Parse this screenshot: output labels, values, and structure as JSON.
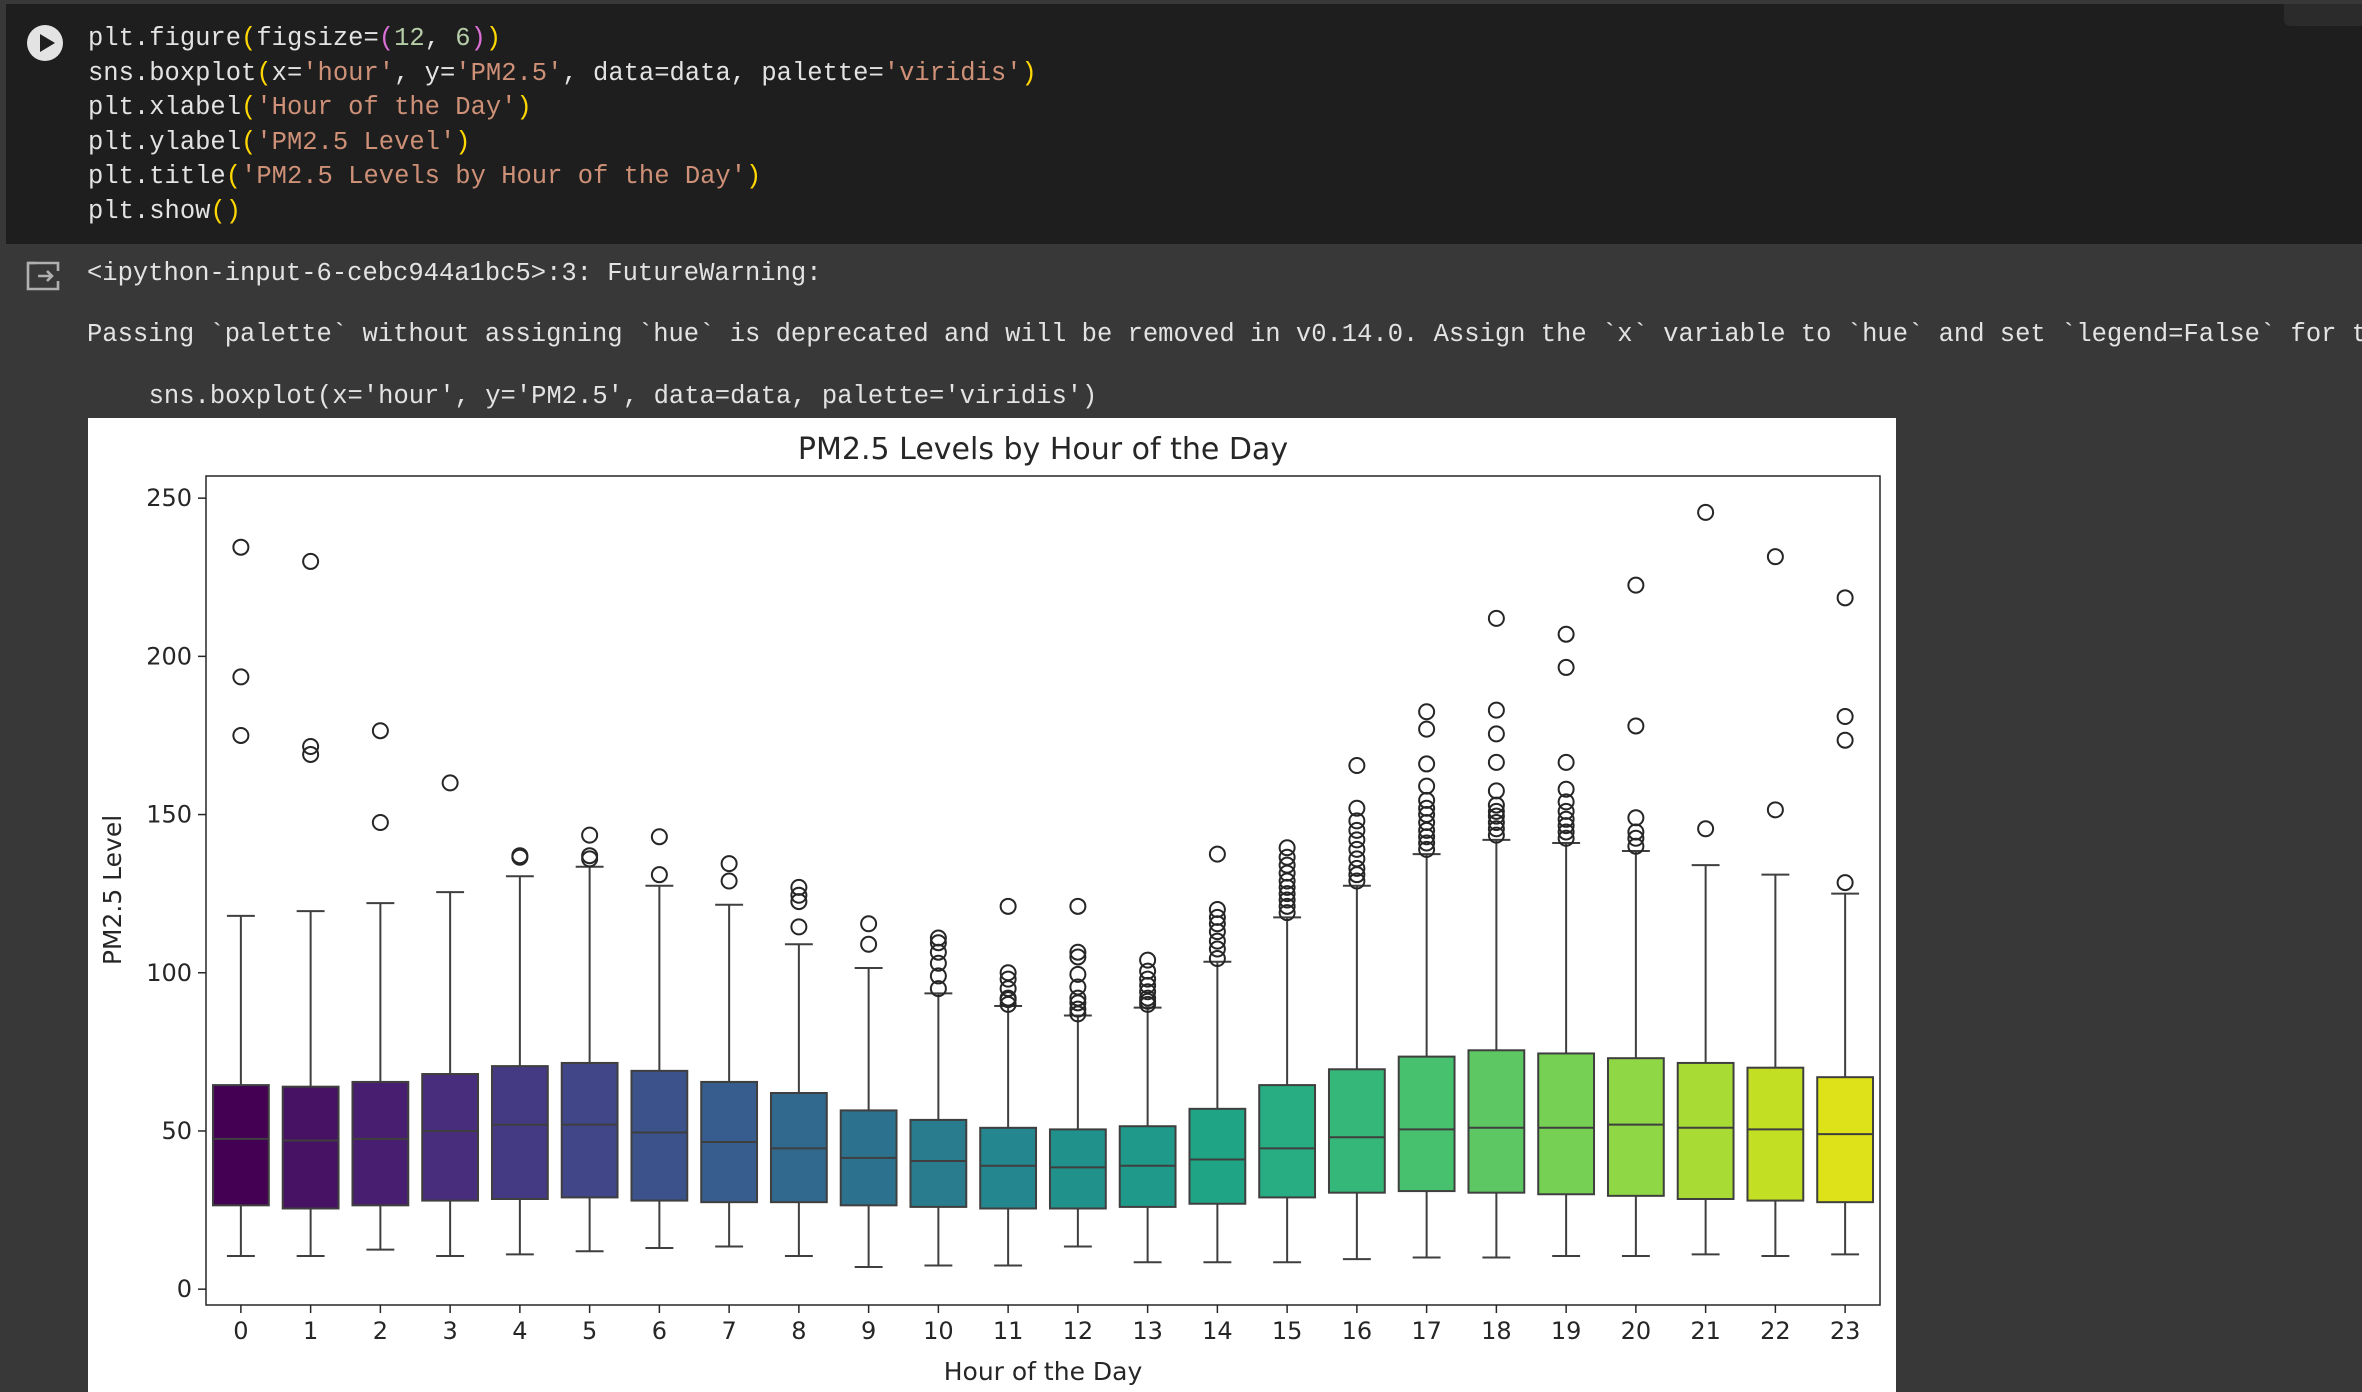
{
  "code_cell": {
    "lines": [
      [
        [
          "plt.figure",
          "t"
        ],
        [
          "(",
          "p1"
        ],
        [
          "figsize=",
          "t"
        ],
        [
          "(",
          "p2"
        ],
        [
          "12",
          "n"
        ],
        [
          ", ",
          "t"
        ],
        [
          "6",
          "n"
        ],
        [
          ")",
          "p2"
        ],
        [
          ")",
          "p1"
        ]
      ],
      [
        [
          "sns.boxplot",
          "t"
        ],
        [
          "(",
          "p1"
        ],
        [
          "x=",
          "t"
        ],
        [
          "'hour'",
          "s"
        ],
        [
          ", y=",
          "t"
        ],
        [
          "'PM2.5'",
          "s"
        ],
        [
          ", data=data, palette=",
          "t"
        ],
        [
          "'viridis'",
          "s"
        ],
        [
          ")",
          "p1"
        ]
      ],
      [
        [
          "plt.xlabel",
          "t"
        ],
        [
          "(",
          "p1"
        ],
        [
          "'Hour of the Day'",
          "s"
        ],
        [
          ")",
          "p1"
        ]
      ],
      [
        [
          "plt.ylabel",
          "t"
        ],
        [
          "(",
          "p1"
        ],
        [
          "'PM2.5 Level'",
          "s"
        ],
        [
          ")",
          "p1"
        ]
      ],
      [
        [
          "plt.title",
          "t"
        ],
        [
          "(",
          "p1"
        ],
        [
          "'PM2.5 Levels by Hour of the Day'",
          "s"
        ],
        [
          ")",
          "p1"
        ]
      ],
      [
        [
          "plt.show",
          "t"
        ],
        [
          "()",
          "p1"
        ]
      ]
    ]
  },
  "output": {
    "warning_header": "<ipython-input-6-cebc944a1bc5>:3: FutureWarning:",
    "warning_message": "Passing `palette` without assigning `hue` is deprecated and will be removed in v0.14.0. Assign the `x` variable to `hue` and set `legend=False` for th",
    "warning_code": "  sns.boxplot(x='hour', y='PM2.5', data=data, palette='viridis')"
  },
  "icons": {
    "run": "run-cell-icon",
    "output": "output-icon"
  },
  "colors": {
    "page_bg": "#383838",
    "code_bg": "#1e1e1e",
    "text": "#e3e3e3",
    "string": "#ce9178",
    "number": "#b5cea8",
    "paren1": "#ffd700",
    "paren2": "#da70d6",
    "box_edge": "#3f3f3f"
  },
  "chart_data": {
    "type": "boxplot",
    "title": "PM2.5 Levels by Hour of the Day",
    "xlabel": "Hour of the Day",
    "ylabel": "PM2.5 Level",
    "ylim": [
      -5,
      257
    ],
    "yticks": [
      0,
      50,
      100,
      150,
      200,
      250
    ],
    "palette": "viridis",
    "categories": [
      "0",
      "1",
      "2",
      "3",
      "4",
      "5",
      "6",
      "7",
      "8",
      "9",
      "10",
      "11",
      "12",
      "13",
      "14",
      "15",
      "16",
      "17",
      "18",
      "19",
      "20",
      "21",
      "22",
      "23"
    ],
    "colors": [
      "#440154",
      "#471164",
      "#481f70",
      "#472d7b",
      "#443a83",
      "#404688",
      "#3b528b",
      "#365d8d",
      "#31688e",
      "#2c728e",
      "#287c8e",
      "#24868e",
      "#21918c",
      "#1f9a8a",
      "#20a486",
      "#27ad81",
      "#35b779",
      "#47c16e",
      "#5dc863",
      "#75d054",
      "#8fd744",
      "#a8db34",
      "#c2df23",
      "#dde318"
    ],
    "boxes": [
      {
        "whislo": 10.5,
        "q1": 26.5,
        "med": 47.5,
        "q3": 64.5,
        "whishi": 118,
        "fliers": [
          175,
          193.5,
          234.5
        ]
      },
      {
        "whislo": 10.5,
        "q1": 25.5,
        "med": 47,
        "q3": 64,
        "whishi": 119.5,
        "fliers": [
          169,
          171.5,
          230
        ]
      },
      {
        "whislo": 12.5,
        "q1": 26.5,
        "med": 47.5,
        "q3": 65.5,
        "whishi": 122,
        "fliers": [
          147.5,
          176.5
        ]
      },
      {
        "whislo": 10.5,
        "q1": 28,
        "med": 50,
        "q3": 68,
        "whishi": 125.5,
        "fliers": [
          160
        ]
      },
      {
        "whislo": 11,
        "q1": 28.5,
        "med": 52,
        "q3": 70.5,
        "whishi": 130.5,
        "fliers": [
          136.5,
          137
        ]
      },
      {
        "whislo": 12,
        "q1": 29,
        "med": 52,
        "q3": 71.5,
        "whishi": 133.5,
        "fliers": [
          136,
          137,
          143.5
        ]
      },
      {
        "whislo": 13,
        "q1": 28,
        "med": 49.5,
        "q3": 69,
        "whishi": 127.5,
        "fliers": [
          131,
          143
        ]
      },
      {
        "whislo": 13.5,
        "q1": 27.5,
        "med": 46.5,
        "q3": 65.5,
        "whishi": 121.5,
        "fliers": [
          129,
          134.5
        ]
      },
      {
        "whislo": 10.5,
        "q1": 27.5,
        "med": 44.5,
        "q3": 62,
        "whishi": 109,
        "fliers": [
          114.5,
          122.5,
          124.5,
          127
        ]
      },
      {
        "whislo": 7,
        "q1": 26.5,
        "med": 41.5,
        "q3": 56.5,
        "whishi": 101.5,
        "fliers": [
          109,
          115.5
        ]
      },
      {
        "whislo": 7.5,
        "q1": 26,
        "med": 40.5,
        "q3": 53.5,
        "whishi": 93.5,
        "fliers": [
          95,
          99,
          103,
          106.5,
          109.5,
          111
        ]
      },
      {
        "whislo": 7.5,
        "q1": 25.5,
        "med": 39,
        "q3": 51,
        "whishi": 89.5,
        "fliers": [
          90,
          91.5,
          92,
          95,
          98,
          100,
          121
        ]
      },
      {
        "whislo": 13.5,
        "q1": 25.5,
        "med": 38.5,
        "q3": 50.5,
        "whishi": 86.5,
        "fliers": [
          87,
          88.5,
          90.5,
          92,
          95.5,
          99.5,
          105,
          106.5,
          121
        ]
      },
      {
        "whislo": 8.5,
        "q1": 26,
        "med": 39,
        "q3": 51.5,
        "whishi": 89,
        "fliers": [
          90,
          91,
          92,
          94,
          96,
          98,
          100.5,
          104
        ]
      },
      {
        "whislo": 8.5,
        "q1": 27,
        "med": 41,
        "q3": 57,
        "whishi": 103.5,
        "fliers": [
          104.5,
          107.5,
          110,
          113,
          115.5,
          117.5,
          120,
          137.5
        ]
      },
      {
        "whislo": 8.5,
        "q1": 29,
        "med": 44.5,
        "q3": 64.5,
        "whishi": 117.5,
        "fliers": [
          119,
          121,
          123,
          125,
          127,
          129,
          131.5,
          134,
          136.5,
          139.5
        ]
      },
      {
        "whislo": 9.5,
        "q1": 30.5,
        "med": 48,
        "q3": 69.5,
        "whishi": 127.5,
        "fliers": [
          129,
          131,
          133,
          136,
          139,
          142,
          145,
          148,
          152,
          165.5
        ]
      },
      {
        "whislo": 10,
        "q1": 31,
        "med": 50.5,
        "q3": 73.5,
        "whishi": 137.5,
        "fliers": [
          139,
          141,
          143,
          145,
          147.5,
          150,
          152,
          154.5,
          159,
          166,
          177,
          182.5
        ]
      },
      {
        "whislo": 10,
        "q1": 30.5,
        "med": 51,
        "q3": 75.5,
        "whishi": 142,
        "fliers": [
          143.5,
          145.5,
          147.5,
          149.5,
          151,
          153,
          157.5,
          166.5,
          175.5,
          183,
          212
        ]
      },
      {
        "whislo": 10.5,
        "q1": 30,
        "med": 51,
        "q3": 74.5,
        "whishi": 141,
        "fliers": [
          142.5,
          144.5,
          146.5,
          148.5,
          151,
          154,
          158,
          166.5,
          196.5,
          207
        ]
      },
      {
        "whislo": 10.5,
        "q1": 29.5,
        "med": 52,
        "q3": 73,
        "whishi": 138.5,
        "fliers": [
          140,
          142.5,
          144.5,
          149,
          178,
          222.5
        ]
      },
      {
        "whislo": 11,
        "q1": 28.5,
        "med": 51,
        "q3": 71.5,
        "whishi": 134,
        "fliers": [
          145.5,
          245.5
        ]
      },
      {
        "whislo": 10.5,
        "q1": 28,
        "med": 50.5,
        "q3": 70,
        "whishi": 131,
        "fliers": [
          151.5,
          231.5
        ]
      },
      {
        "whislo": 11,
        "q1": 27.5,
        "med": 49,
        "q3": 67,
        "whishi": 125,
        "fliers": [
          128.5,
          173.5,
          181,
          218.5
        ]
      }
    ],
    "grid": false,
    "legend": "none"
  }
}
